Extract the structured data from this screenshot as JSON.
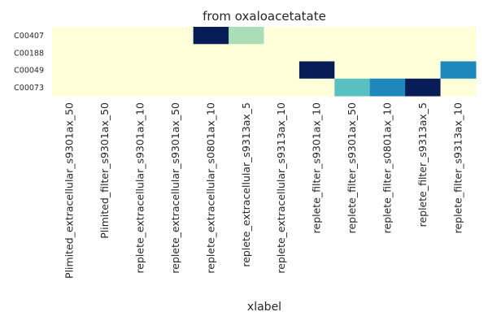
{
  "chart_data": {
    "type": "heatmap",
    "title": "from oxaloacetatate",
    "xlabel": "xlabel",
    "ylabel": "",
    "x_categories": [
      "Plimited_extracellular_s9301ax_50",
      "Plimited_filter_s9301ax_50",
      "replete_extracellular_s9301ax_10",
      "replete_extracellular_s9301ax_50",
      "replete_extracellular_s0801ax_10",
      "replete_extracellular_s9313ax_5",
      "replete_extracellular_s9313ax_10",
      "replete_filter_s9301ax_10",
      "replete_filter_s9301ax_50",
      "replete_filter_s0801ax_10",
      "replete_filter_s9313ax_5",
      "replete_filter_s9313ax_10"
    ],
    "y_categories": [
      "C00407",
      "C00188",
      "C00049",
      "C00073"
    ],
    "values": [
      [
        0,
        0,
        0,
        0,
        1.0,
        0.3,
        0,
        0,
        0,
        0,
        0,
        0
      ],
      [
        0,
        0,
        0,
        0,
        0,
        0,
        0,
        0,
        0,
        0,
        0,
        0
      ],
      [
        0,
        0,
        0,
        0,
        0,
        0,
        0,
        1.0,
        0,
        0,
        0,
        0.65
      ],
      [
        0,
        0,
        0,
        0,
        0,
        0,
        0,
        0,
        0.45,
        0.65,
        1.0,
        0
      ]
    ],
    "colormap": "YlGnBu",
    "vmin": 0,
    "vmax": 1,
    "colorbar": false
  }
}
